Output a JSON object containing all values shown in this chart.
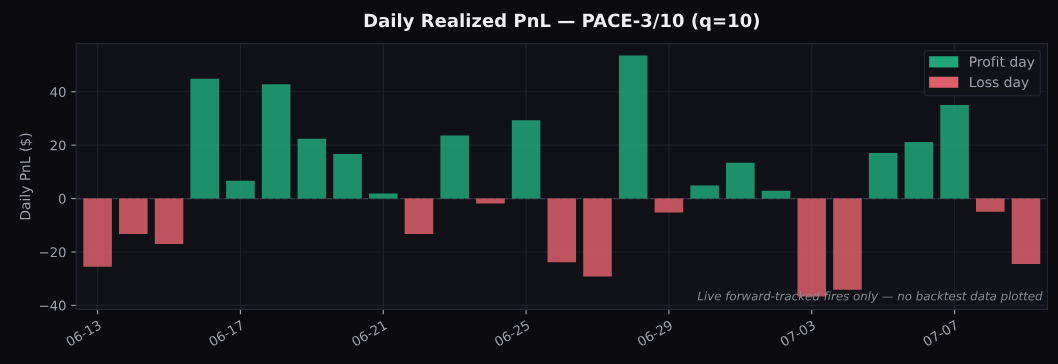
{
  "chart_data": {
    "type": "bar",
    "title": "Daily Realized PnL — PACE-3/10 (q=10)",
    "ylabel": "Daily PnL ($)",
    "categories": [
      "06-13",
      null,
      null,
      null,
      "06-17",
      null,
      null,
      null,
      "06-21",
      null,
      null,
      null,
      "06-25",
      null,
      null,
      null,
      "06-29",
      null,
      null,
      null,
      "07-03",
      null,
      null,
      null,
      "07-07",
      null,
      null
    ],
    "series": [
      {
        "name": "Profit day",
        "color": "#21a67a",
        "values": [
          null,
          null,
          null,
          44.9,
          6.7,
          42.8,
          22.4,
          16.7,
          1.9,
          null,
          23.6,
          null,
          29.3,
          null,
          null,
          53.6,
          null,
          4.9,
          13.4,
          2.9,
          null,
          null,
          17.1,
          21.2,
          35.0,
          null,
          null
        ]
      },
      {
        "name": "Loss day",
        "color": "#dc5f6a",
        "values": [
          -25.5,
          -13.3,
          -17.0,
          null,
          null,
          null,
          null,
          null,
          null,
          -13.3,
          null,
          -1.8,
          null,
          -23.8,
          -29.2,
          null,
          -5.2,
          null,
          null,
          null,
          -36.7,
          -34.1,
          null,
          null,
          null,
          -4.9,
          -24.5
        ]
      }
    ],
    "ylim": [
      -41.5,
      58
    ],
    "yticks": [
      -40,
      -20,
      0,
      20,
      40
    ],
    "grid": true,
    "legend": "top right",
    "ref_lines": [
      {
        "axis": "y",
        "value": 0,
        "color": "#3a3b45",
        "line_style": "dashed"
      }
    ],
    "annotations": [
      "Live forward-tracked fires only — no backtest data plotted"
    ]
  }
}
